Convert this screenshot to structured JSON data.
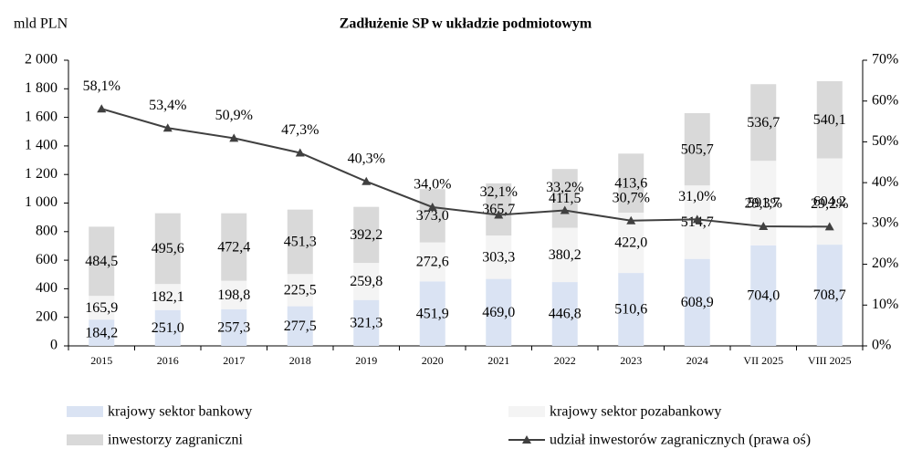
{
  "chart_data": {
    "type": "bar",
    "stacked": true,
    "title": "Zadłużenie SP w układzie podmiotowym",
    "y_label": "mld PLN",
    "categories": [
      "2015",
      "2016",
      "2017",
      "2018",
      "2019",
      "2020",
      "2021",
      "2022",
      "2023",
      "2024",
      "VII 2025",
      "VIII 2025"
    ],
    "series": [
      {
        "name": "krajowy sektor bankowy",
        "color": "#dae3f3",
        "values": [
          184.2,
          251.0,
          257.3,
          277.5,
          321.3,
          451.9,
          469.0,
          446.8,
          510.6,
          608.9,
          704.0,
          708.7
        ],
        "value_labels": [
          "184,2",
          "251,0",
          "257,3",
          "277,5",
          "321,3",
          "451,9",
          "469,0",
          "446,8",
          "510,6",
          "608,9",
          "704,0",
          "708,7"
        ]
      },
      {
        "name": "krajowy sektor pozabankowy",
        "color": "#f4f4f4",
        "values": [
          165.9,
          182.1,
          198.8,
          225.5,
          259.8,
          272.6,
          303.3,
          380.2,
          422.0,
          514.7,
          591.7,
          604.2
        ],
        "value_labels": [
          "165,9",
          "182,1",
          "198,8",
          "225,5",
          "259,8",
          "272,6",
          "303,3",
          "380,2",
          "422,0",
          "514,7",
          "591,7",
          "604,2"
        ]
      },
      {
        "name": "inwestorzy zagraniczni",
        "color": "#d9d9d9",
        "values": [
          484.5,
          495.6,
          472.4,
          451.3,
          392.2,
          373.0,
          365.7,
          411.5,
          413.6,
          505.7,
          536.7,
          540.1
        ],
        "value_labels": [
          "484,5",
          "495,6",
          "472,4",
          "451,3",
          "392,2",
          "373,0",
          "365,7",
          "411,5",
          "413,6",
          "505,7",
          "536,7",
          "540,1"
        ]
      },
      {
        "name": "udział inwestorów zagranicznych (prawa oś)",
        "type": "line",
        "axis": "y2",
        "color": "#404040",
        "values": [
          58.1,
          53.4,
          50.9,
          47.3,
          40.3,
          34.0,
          32.1,
          33.2,
          30.7,
          31.0,
          29.3,
          29.2
        ],
        "value_labels": [
          "58,1%",
          "53,4%",
          "50,9%",
          "47,3%",
          "40,3%",
          "34,0%",
          "32,1%",
          "33,2%",
          "30,7%",
          "31,0%",
          "29,3%",
          "29,2%"
        ]
      }
    ],
    "ylim": [
      0,
      2000
    ],
    "yticks": [
      0,
      200,
      400,
      600,
      800,
      {
        "value": 1000,
        "label": "1 000"
      },
      {
        "value": 1200,
        "label": "1 200"
      },
      {
        "value": 1400,
        "label": "1 400"
      },
      {
        "value": 1600,
        "label": "1 600"
      },
      {
        "value": 1800,
        "label": "1 800"
      },
      {
        "value": 2000,
        "label": "2 000"
      }
    ],
    "y2lim": [
      0,
      70
    ],
    "y2ticks": [
      {
        "value": 0,
        "label": "0%"
      },
      {
        "value": 10,
        "label": "10%"
      },
      {
        "value": 20,
        "label": "20%"
      },
      {
        "value": 30,
        "label": "30%"
      },
      {
        "value": 40,
        "label": "40%"
      },
      {
        "value": 50,
        "label": "50%"
      },
      {
        "value": 60,
        "label": "60%"
      },
      {
        "value": 70,
        "label": "70%"
      }
    ],
    "legend": "bottom"
  }
}
